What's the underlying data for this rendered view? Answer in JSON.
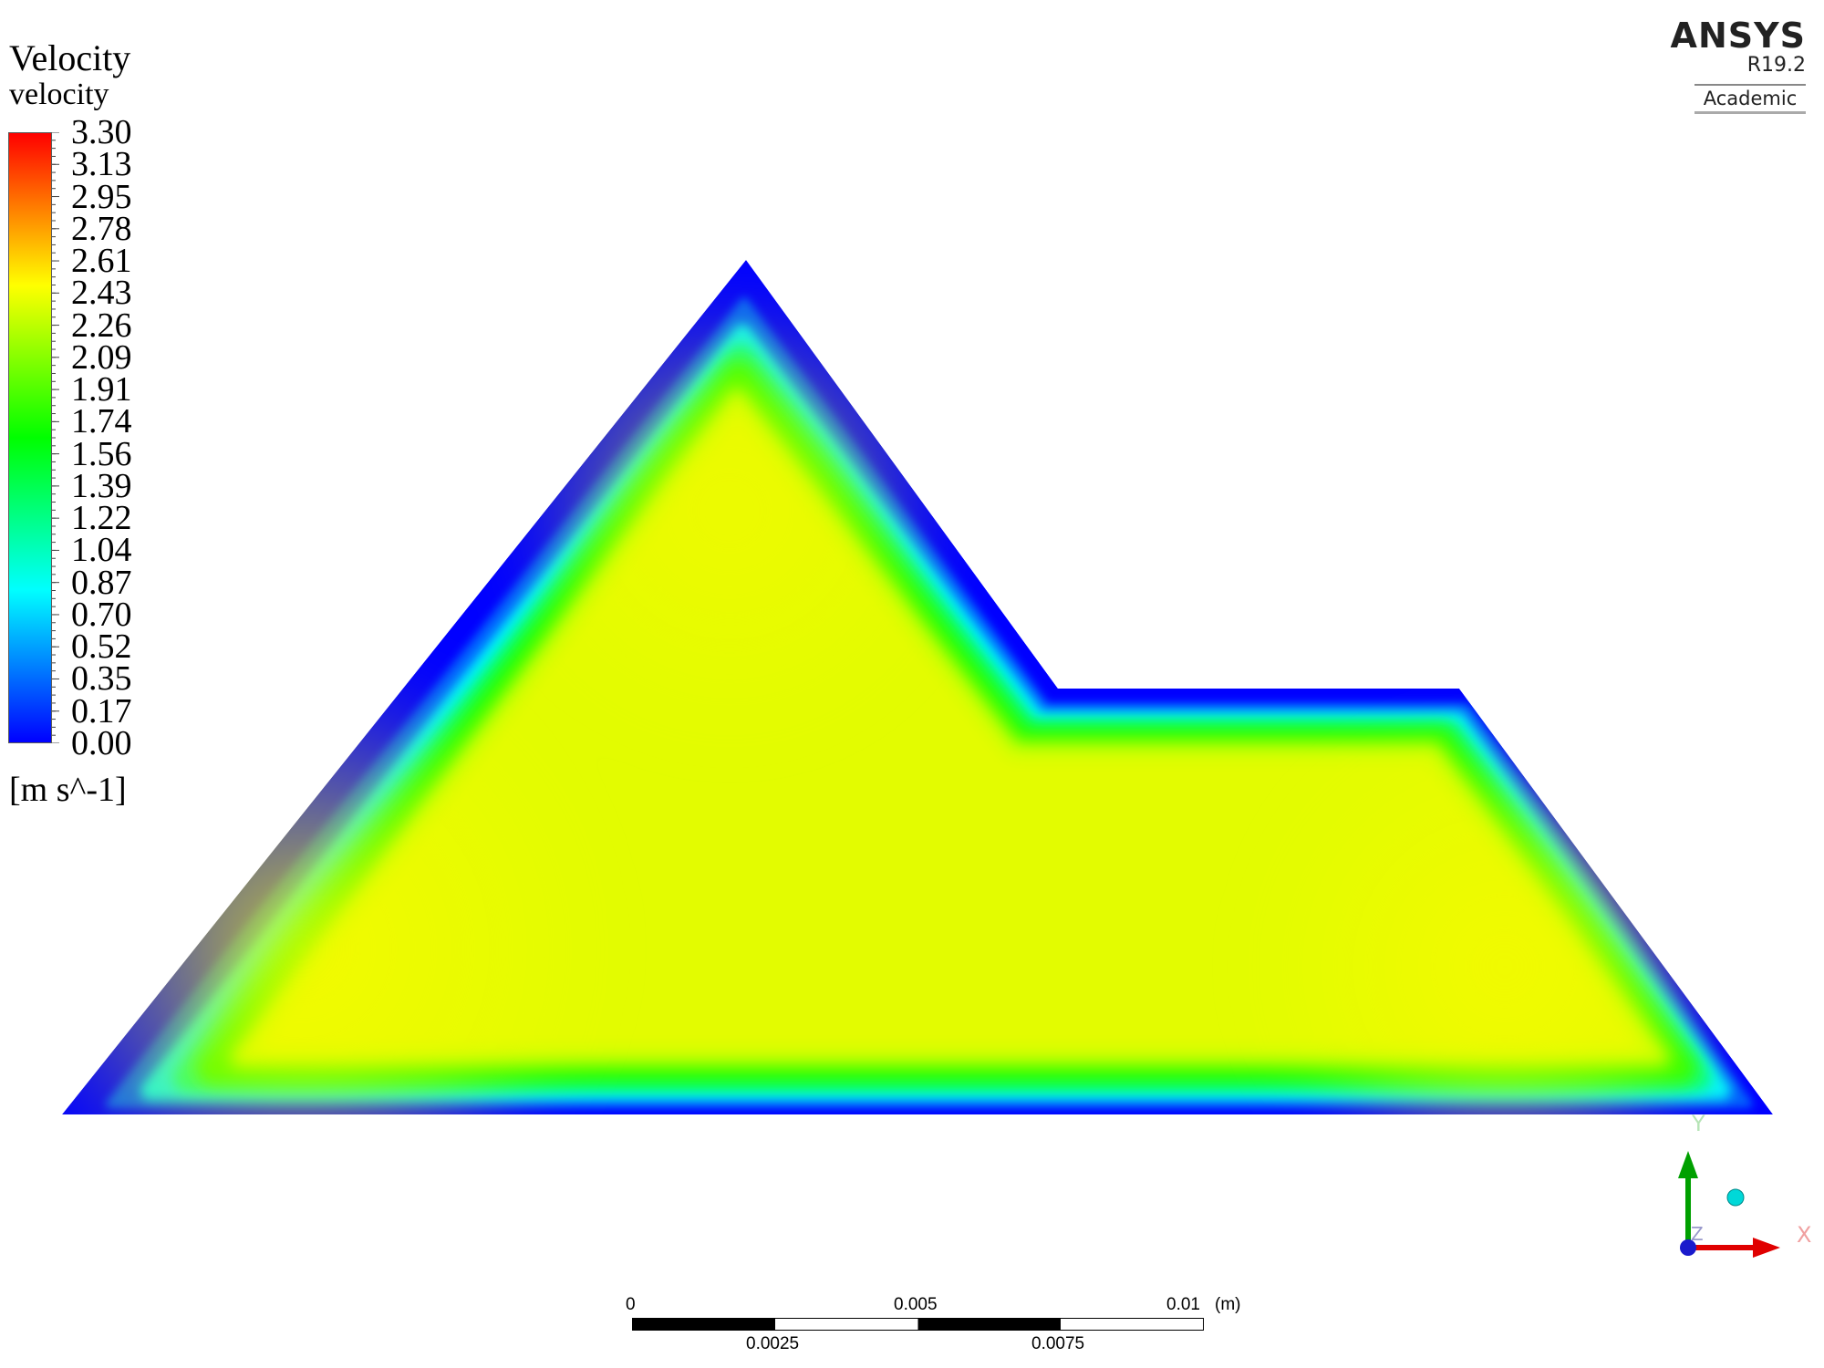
{
  "legend": {
    "title": "Velocity",
    "subtitle": "velocity",
    "units": "[m s^-1]",
    "ticks": [
      "3.30",
      "3.13",
      "2.95",
      "2.78",
      "2.61",
      "2.43",
      "2.26",
      "2.09",
      "1.91",
      "1.74",
      "1.56",
      "1.39",
      "1.22",
      "1.04",
      "0.87",
      "0.70",
      "0.52",
      "0.35",
      "0.17",
      "0.00"
    ],
    "max_value": 3.3,
    "min_value": 0.0,
    "colormap": [
      "#ff0000",
      "#ff8000",
      "#ffff00",
      "#80ff00",
      "#00ff00",
      "#00ff80",
      "#00ffff",
      "#0080ff",
      "#0000ff"
    ]
  },
  "brand": {
    "name": "ANSYS",
    "version": "R19.2",
    "edition": "Academic"
  },
  "contour": {
    "wall_color": "#0000ff",
    "core_color": "#e3fc00",
    "hot_color": "#f6fa00"
  },
  "triad": {
    "x_label": "X",
    "y_label": "Y",
    "z_label": "Z",
    "x_color": "#e00000",
    "y_color": "#00a000",
    "origin_color": "#1a1acc"
  },
  "scale": {
    "top_labels": [
      "0",
      "0.005",
      "0.01"
    ],
    "bottom_labels": [
      "0.0025",
      "0.0075"
    ],
    "unit": "(m)"
  }
}
